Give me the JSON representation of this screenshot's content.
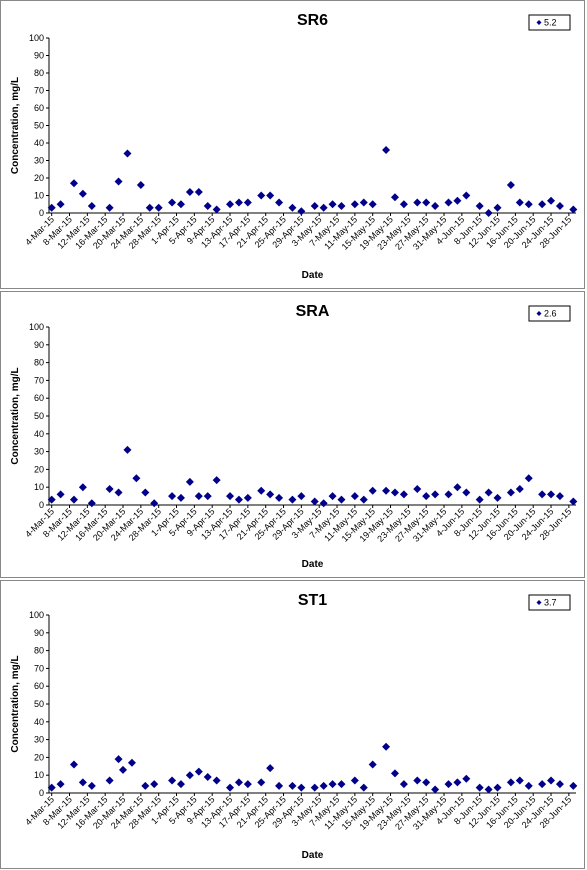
{
  "chart_data": [
    {
      "type": "scatter",
      "title": "SR6",
      "xlabel": "Date",
      "ylabel": "Concentration, mg/L",
      "ylim": [
        0,
        100
      ],
      "yticks": [
        0,
        10,
        20,
        30,
        40,
        50,
        60,
        70,
        80,
        90,
        100
      ],
      "xticks": [
        "4-Mar-15",
        "8-Mar-15",
        "12-Mar-15",
        "16-Mar-15",
        "20-Mar-15",
        "24-Mar-15",
        "28-Mar-15",
        "1-Apr-15",
        "5-Apr-15",
        "9-Apr-15",
        "13-Apr-15",
        "17-Apr-15",
        "21-Apr-15",
        "25-Apr-15",
        "29-Apr-15",
        "3-May-15",
        "7-May-15",
        "11-May-15",
        "15-May-15",
        "19-May-15",
        "23-May-15",
        "27-May-15",
        "31-May-15",
        "4-Jun-15",
        "8-Jun-15",
        "12-Jun-15",
        "16-Jun-15",
        "20-Jun-15",
        "24-Jun-15",
        "28-Jun-15"
      ],
      "legend": "top-right",
      "grid": false,
      "marker_color": "#00008B",
      "series": [
        {
          "name": "5.2",
          "x": [
            "4-Mar-15",
            "6-Mar-15",
            "9-Mar-15",
            "11-Mar-15",
            "13-Mar-15",
            "17-Mar-15",
            "19-Mar-15",
            "21-Mar-15",
            "24-Mar-15",
            "26-Mar-15",
            "28-Mar-15",
            "31-Mar-15",
            "2-Apr-15",
            "4-Apr-15",
            "6-Apr-15",
            "8-Apr-15",
            "10-Apr-15",
            "13-Apr-15",
            "15-Apr-15",
            "17-Apr-15",
            "20-Apr-15",
            "22-Apr-15",
            "24-Apr-15",
            "27-Apr-15",
            "29-Apr-15",
            "2-May-15",
            "4-May-15",
            "6-May-15",
            "8-May-15",
            "11-May-15",
            "13-May-15",
            "15-May-15",
            "18-May-15",
            "20-May-15",
            "22-May-15",
            "25-May-15",
            "27-May-15",
            "29-May-15",
            "1-Jun-15",
            "3-Jun-15",
            "5-Jun-15",
            "8-Jun-15",
            "10-Jun-15",
            "12-Jun-15",
            "15-Jun-15",
            "17-Jun-15",
            "19-Jun-15",
            "22-Jun-15",
            "24-Jun-15",
            "26-Jun-15",
            "29-Jun-15"
          ],
          "y": [
            3,
            5,
            17,
            11,
            4,
            3,
            18,
            34,
            16,
            3,
            3,
            6,
            5,
            12,
            12,
            4,
            2,
            5,
            6,
            6,
            10,
            10,
            6,
            3,
            1,
            4,
            3,
            5,
            4,
            5,
            6,
            5,
            36,
            9,
            5,
            6,
            6,
            4,
            6,
            7,
            10,
            4,
            0,
            3,
            16,
            6,
            5,
            5,
            7,
            4,
            2
          ]
        }
      ]
    },
    {
      "type": "scatter",
      "title": "SRA",
      "xlabel": "Date",
      "ylabel": "Concentration, mg/L",
      "ylim": [
        0,
        100
      ],
      "yticks": [
        0,
        10,
        20,
        30,
        40,
        50,
        60,
        70,
        80,
        90,
        100
      ],
      "xticks": [
        "4-Mar-15",
        "8-Mar-15",
        "12-Mar-15",
        "16-Mar-15",
        "20-Mar-15",
        "24-Mar-15",
        "28-Mar-15",
        "1-Apr-15",
        "5-Apr-15",
        "9-Apr-15",
        "13-Apr-15",
        "17-Apr-15",
        "21-Apr-15",
        "25-Apr-15",
        "29-Apr-15",
        "3-May-15",
        "7-May-15",
        "11-May-15",
        "15-May-15",
        "19-May-15",
        "23-May-15",
        "27-May-15",
        "31-May-15",
        "4-Jun-15",
        "8-Jun-15",
        "12-Jun-15",
        "16-Jun-15",
        "20-Jun-15",
        "24-Jun-15",
        "28-Jun-15"
      ],
      "legend": "top-right",
      "grid": false,
      "marker_color": "#00008B",
      "series": [
        {
          "name": "2.6",
          "x": [
            "4-Mar-15",
            "6-Mar-15",
            "9-Mar-15",
            "11-Mar-15",
            "13-Mar-15",
            "17-Mar-15",
            "19-Mar-15",
            "21-Mar-15",
            "23-Mar-15",
            "25-Mar-15",
            "27-Mar-15",
            "31-Mar-15",
            "2-Apr-15",
            "4-Apr-15",
            "6-Apr-15",
            "8-Apr-15",
            "10-Apr-15",
            "13-Apr-15",
            "15-Apr-15",
            "17-Apr-15",
            "20-Apr-15",
            "22-Apr-15",
            "24-Apr-15",
            "27-Apr-15",
            "29-Apr-15",
            "2-May-15",
            "4-May-15",
            "6-May-15",
            "8-May-15",
            "11-May-15",
            "13-May-15",
            "15-May-15",
            "18-May-15",
            "20-May-15",
            "22-May-15",
            "25-May-15",
            "27-May-15",
            "29-May-15",
            "1-Jun-15",
            "3-Jun-15",
            "5-Jun-15",
            "8-Jun-15",
            "10-Jun-15",
            "12-Jun-15",
            "15-Jun-15",
            "17-Jun-15",
            "19-Jun-15",
            "22-Jun-15",
            "24-Jun-15",
            "26-Jun-15",
            "29-Jun-15"
          ],
          "y": [
            3,
            6,
            3,
            10,
            1,
            9,
            7,
            31,
            15,
            7,
            1,
            5,
            4,
            13,
            5,
            5,
            14,
            5,
            3,
            4,
            8,
            6,
            4,
            3,
            5,
            2,
            1,
            5,
            3,
            5,
            3,
            8,
            8,
            7,
            6,
            9,
            5,
            6,
            6,
            10,
            7,
            3,
            7,
            4,
            7,
            9,
            15,
            6,
            6,
            5,
            2
          ]
        }
      ]
    },
    {
      "type": "scatter",
      "title": "ST1",
      "xlabel": "Date",
      "ylabel": "Concentration, mg/L",
      "ylim": [
        0,
        100
      ],
      "yticks": [
        0,
        10,
        20,
        30,
        40,
        50,
        60,
        70,
        80,
        90,
        100
      ],
      "xticks": [
        "4-Mar-15",
        "8-Mar-15",
        "12-Mar-15",
        "16-Mar-15",
        "20-Mar-15",
        "24-Mar-15",
        "28-Mar-15",
        "1-Apr-15",
        "5-Apr-15",
        "9-Apr-15",
        "13-Apr-15",
        "17-Apr-15",
        "21-Apr-15",
        "25-Apr-15",
        "29-Apr-15",
        "3-May-15",
        "7-May-15",
        "11-May-15",
        "15-May-15",
        "19-May-15",
        "23-May-15",
        "27-May-15",
        "31-May-15",
        "4-Jun-15",
        "8-Jun-15",
        "12-Jun-15",
        "16-Jun-15",
        "20-Jun-15",
        "24-Jun-15",
        "28-Jun-15"
      ],
      "legend": "top-right",
      "grid": false,
      "marker_color": "#00008B",
      "series": [
        {
          "name": "3.7",
          "x": [
            "4-Mar-15",
            "6-Mar-15",
            "9-Mar-15",
            "11-Mar-15",
            "13-Mar-15",
            "17-Mar-15",
            "19-Mar-15",
            "20-Mar-15",
            "22-Mar-15",
            "25-Mar-15",
            "27-Mar-15",
            "31-Mar-15",
            "2-Apr-15",
            "4-Apr-15",
            "6-Apr-15",
            "8-Apr-15",
            "10-Apr-15",
            "13-Apr-15",
            "15-Apr-15",
            "17-Apr-15",
            "20-Apr-15",
            "22-Apr-15",
            "24-Apr-15",
            "27-Apr-15",
            "29-Apr-15",
            "2-May-15",
            "4-May-15",
            "6-May-15",
            "8-May-15",
            "11-May-15",
            "13-May-15",
            "15-May-15",
            "18-May-15",
            "20-May-15",
            "22-May-15",
            "25-May-15",
            "27-May-15",
            "29-May-15",
            "1-Jun-15",
            "3-Jun-15",
            "5-Jun-15",
            "8-Jun-15",
            "10-Jun-15",
            "12-Jun-15",
            "15-Jun-15",
            "17-Jun-15",
            "19-Jun-15",
            "22-Jun-15",
            "24-Jun-15",
            "26-Jun-15",
            "29-Jun-15"
          ],
          "y": [
            3,
            5,
            16,
            6,
            4,
            7,
            19,
            13,
            17,
            4,
            5,
            7,
            5,
            10,
            12,
            9,
            7,
            3,
            6,
            5,
            6,
            14,
            4,
            4,
            3,
            3,
            4,
            5,
            5,
            7,
            3,
            16,
            26,
            11,
            5,
            7,
            6,
            2,
            5,
            6,
            8,
            3,
            2,
            3,
            6,
            7,
            4,
            5,
            7,
            5,
            4
          ]
        }
      ]
    }
  ]
}
